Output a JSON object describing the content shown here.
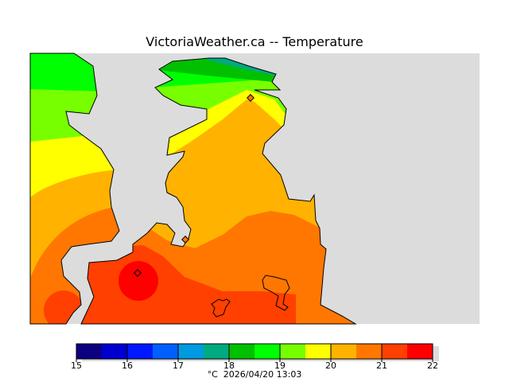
{
  "title": "VictoriaWeather.ca -- Temperature",
  "colorbar": {
    "ticks": [
      "15",
      "16",
      "17",
      "18",
      "19",
      "20",
      "21",
      "22"
    ],
    "colors": [
      "#0c0080",
      "#0000d0",
      "#0018ff",
      "#0060ff",
      "#009ae0",
      "#00aa80",
      "#00c000",
      "#00ff00",
      "#77ff00",
      "#ffff00",
      "#ffb300",
      "#ff7700",
      "#ff4000",
      "#ff0000"
    ],
    "unit": "°C",
    "timestamp": "2026/04/20 13:03"
  },
  "map": {
    "water_color": "#dcdcdc"
  }
}
